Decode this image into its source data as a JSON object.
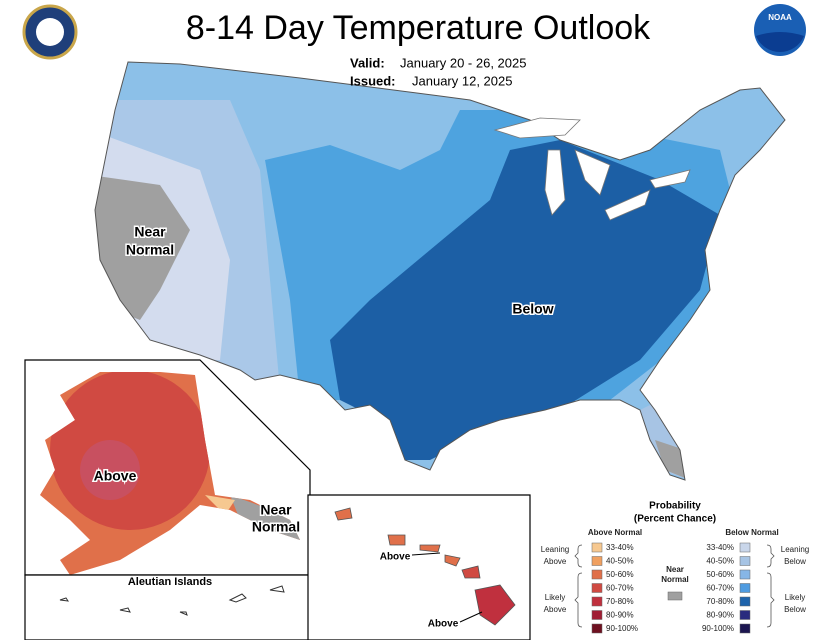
{
  "header": {
    "title": "8-14 Day Temperature Outlook",
    "valid": {
      "label": "Valid:",
      "value": "January 20 - 26, 2025"
    },
    "issued": {
      "label": "Issued:",
      "value": "January 12, 2025"
    },
    "noaa_logo": "NOAA"
  },
  "map_labels": {
    "conus_near": [
      "Near",
      "Normal"
    ],
    "conus_below": "Below",
    "alaska_above": "Above",
    "alaska_near": [
      "Near",
      "Normal"
    ],
    "aleutian": "Aleutian Islands",
    "hawaii_above_1": "Above",
    "hawaii_above_2": "Above"
  },
  "legend": {
    "title": "Probability",
    "subtitle": "(Percent Chance)",
    "above": {
      "heading": "Above Normal",
      "leaning": [
        "Leaning",
        "Above"
      ],
      "likely": [
        "Likely",
        "Above"
      ],
      "bins": [
        {
          "label": "33-40%",
          "color": "#f6c890"
        },
        {
          "label": "40-50%",
          "color": "#f0a060"
        },
        {
          "label": "50-60%",
          "color": "#e0704a"
        },
        {
          "label": "60-70%",
          "color": "#d04a42"
        },
        {
          "label": "70-80%",
          "color": "#c0303e"
        },
        {
          "label": "80-90%",
          "color": "#a01e34"
        },
        {
          "label": "90-100%",
          "color": "#6e1020"
        }
      ]
    },
    "below": {
      "heading": "Below Normal",
      "leaning": [
        "Leaning",
        "Below"
      ],
      "likely": [
        "Likely",
        "Below"
      ],
      "bins": [
        {
          "label": "33-40%",
          "color": "#c9d6ea"
        },
        {
          "label": "40-50%",
          "color": "#a7c4e4"
        },
        {
          "label": "50-60%",
          "color": "#86b6e6"
        },
        {
          "label": "60-70%",
          "color": "#4f9be0"
        },
        {
          "label": "70-80%",
          "color": "#1e63ab"
        },
        {
          "label": "80-90%",
          "color": "#2a2c7e"
        },
        {
          "label": "90-100%",
          "color": "#1c1650"
        }
      ]
    },
    "near": {
      "heading": [
        "Near",
        "Normal"
      ],
      "color": "#a0a0a0"
    }
  }
}
